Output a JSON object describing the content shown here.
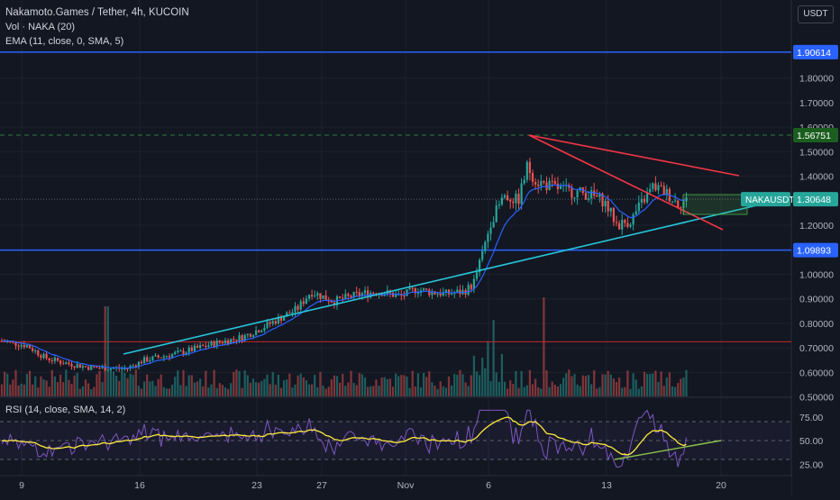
{
  "header": {
    "title": "Nakamoto.Games / Tether, 4h, KUCOIN",
    "vol_label": "Vol · NAKA (20)",
    "ema_label": "EMA (11, close, 0, SMA, 5)",
    "currency_button": "USDT"
  },
  "rsi_panel": {
    "label": "RSI (14, close, SMA, 14, 2)",
    "ticks": [
      "75.00",
      "50.00",
      "25.00"
    ],
    "rsi_color": "#7e57c2",
    "rsi_ma_color": "#ffeb3b"
  },
  "price_axis": {
    "ticks": [
      "1.80000",
      "1.70000",
      "1.60000",
      "1.50000",
      "1.40000",
      "1.20000",
      "1.00000",
      "0.90000",
      "0.80000",
      "0.70000",
      "0.60000",
      "0.50000"
    ],
    "tick_values": [
      1.8,
      1.7,
      1.6,
      1.5,
      1.4,
      1.2,
      1.0,
      0.9,
      0.8,
      0.7,
      0.6,
      0.5
    ],
    "badges": [
      {
        "label": "1.90614",
        "value": 1.90614,
        "color": "#2962ff"
      },
      {
        "label": "1.56751",
        "value": 1.56751,
        "color": "#1b5e20"
      },
      {
        "label": "1.09893",
        "value": 1.09893,
        "color": "#2962ff"
      }
    ],
    "symbol_tag": "NAKAUSDT",
    "last_price": "1.30648",
    "last_value": 1.30648,
    "last_color": "#26a69a"
  },
  "time_axis": {
    "labels": [
      "9",
      "16",
      "23",
      "27",
      "Nov",
      "6",
      "13",
      "20"
    ]
  },
  "drawings": {
    "upper_blue_line": 1.90614,
    "green_dashed_line": 1.56751,
    "lower_blue_line": 1.09893,
    "red_horizontal_line": 0.725
  },
  "colors": {
    "background": "#131722",
    "up": "#26a69a",
    "down": "#ef5350",
    "ema": "#2962ff",
    "trendline": "#26c6da",
    "wedge": "#f23645",
    "axis_text": "#b2b5be"
  }
}
